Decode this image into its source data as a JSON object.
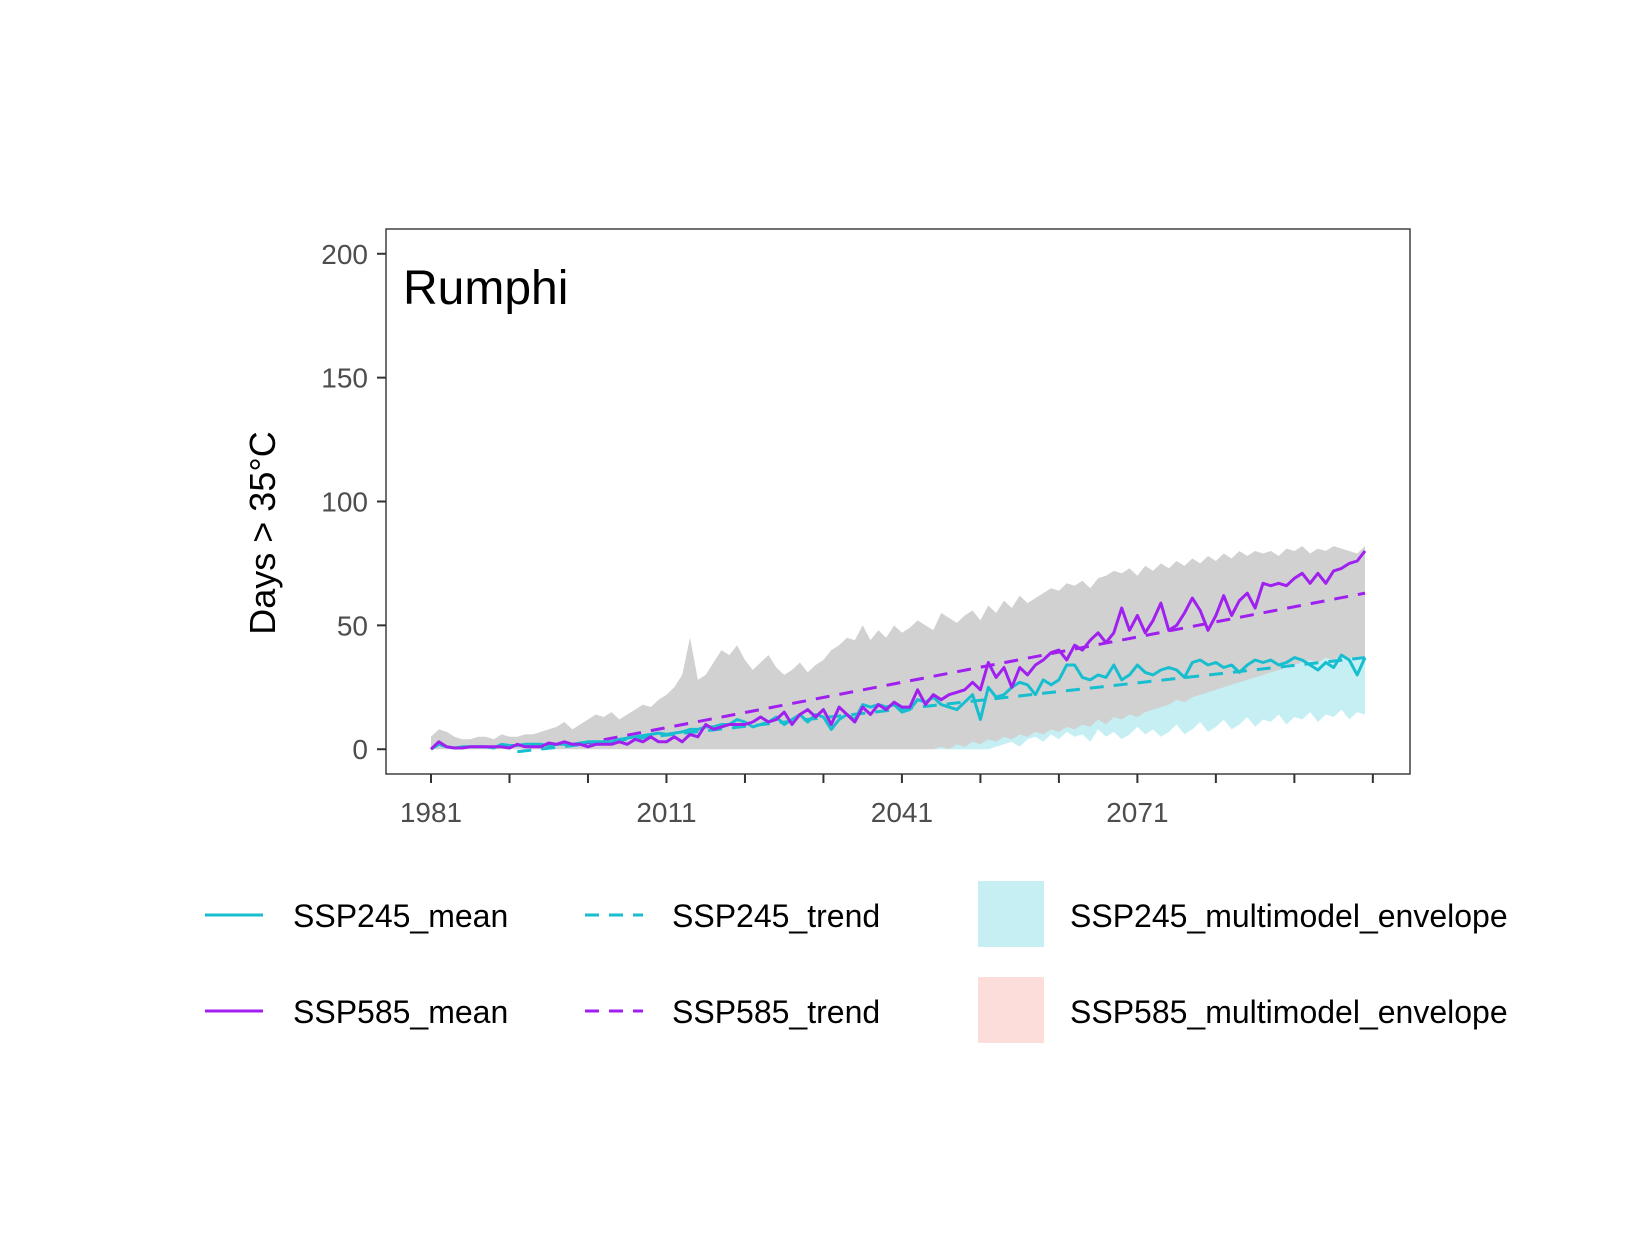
{
  "chart_data": {
    "type": "line",
    "title": "Rumphi",
    "xlabel": "",
    "ylabel": "Days > 35°C",
    "xlim": [
      1981,
      2100
    ],
    "ylim": [
      -10,
      210
    ],
    "xticks": [
      1981,
      2011,
      2041,
      2071
    ],
    "xticks_minor": [
      1991,
      2001,
      2021,
      2031,
      2051,
      2061,
      2081,
      2091,
      2101
    ],
    "yticks": [
      0,
      50,
      100,
      150,
      200
    ],
    "grid": false,
    "legend_position": "bottom",
    "x": [
      1981,
      1982,
      1983,
      1984,
      1985,
      1986,
      1987,
      1988,
      1989,
      1990,
      1991,
      1992,
      1993,
      1994,
      1995,
      1996,
      1997,
      1998,
      1999,
      2000,
      2001,
      2002,
      2003,
      2004,
      2005,
      2006,
      2007,
      2008,
      2009,
      2010,
      2011,
      2012,
      2013,
      2014,
      2015,
      2016,
      2017,
      2018,
      2019,
      2020,
      2021,
      2022,
      2023,
      2024,
      2025,
      2026,
      2027,
      2028,
      2029,
      2030,
      2031,
      2032,
      2033,
      2034,
      2035,
      2036,
      2037,
      2038,
      2039,
      2040,
      2041,
      2042,
      2043,
      2044,
      2045,
      2046,
      2047,
      2048,
      2049,
      2050,
      2051,
      2052,
      2053,
      2054,
      2055,
      2056,
      2057,
      2058,
      2059,
      2060,
      2061,
      2062,
      2063,
      2064,
      2065,
      2066,
      2067,
      2068,
      2069,
      2070,
      2071,
      2072,
      2073,
      2074,
      2075,
      2076,
      2077,
      2078,
      2079,
      2080,
      2081,
      2082,
      2083,
      2084,
      2085,
      2086,
      2087,
      2088,
      2089,
      2090,
      2091,
      2092,
      2093,
      2094,
      2095,
      2096,
      2097,
      2098,
      2099,
      2100
    ],
    "series": [
      {
        "name": "SSP245_mean",
        "kind": "line",
        "color": "#17BECF",
        "values": [
          0,
          2,
          1,
          0.5,
          1,
          1,
          1,
          1,
          0.5,
          2,
          1.5,
          1.5,
          2,
          2,
          2,
          1.5,
          2,
          2,
          2,
          2.5,
          3,
          3,
          3,
          3,
          4,
          4.5,
          5,
          5.5,
          6,
          6.5,
          6,
          6.5,
          7,
          8,
          8,
          9,
          9,
          10,
          10,
          12,
          11,
          9,
          10,
          11,
          13,
          10,
          12,
          14,
          11,
          14,
          13,
          8,
          12,
          14,
          12,
          18,
          17,
          18,
          17,
          18,
          15,
          16,
          20,
          19,
          21,
          18,
          17,
          16,
          19,
          22,
          12,
          25,
          21,
          22,
          25,
          27,
          26,
          22,
          28,
          26,
          28,
          34,
          34,
          29,
          28,
          30,
          29,
          34,
          28,
          30,
          34,
          31,
          30,
          32,
          33,
          32,
          29,
          35,
          36,
          34,
          35,
          33,
          34,
          31,
          34,
          36,
          35,
          36,
          34,
          35,
          37,
          36,
          34,
          32,
          35,
          33,
          38,
          36,
          30,
          37
        ]
      },
      {
        "name": "SSP585_mean",
        "kind": "line",
        "color": "#A020F0",
        "values": [
          0,
          3,
          1,
          0.5,
          0.5,
          1,
          1,
          1,
          1,
          1,
          0.5,
          2,
          1,
          1,
          1,
          2.5,
          2,
          3,
          2,
          2,
          1,
          2,
          2,
          2,
          3,
          2,
          4,
          3,
          5,
          3,
          3,
          5,
          3,
          6,
          5,
          10,
          8,
          9,
          10,
          10,
          10,
          11,
          13,
          11,
          12,
          15,
          10,
          14,
          16,
          13,
          16,
          10,
          17,
          14,
          11,
          17,
          14,
          18,
          16,
          19,
          17,
          17,
          24,
          18,
          22,
          20,
          22,
          23,
          24,
          27,
          24,
          35,
          29,
          33,
          25,
          33,
          30,
          34,
          36,
          39,
          40,
          36,
          42,
          40,
          44,
          47,
          43,
          47,
          57,
          48,
          54,
          47,
          52,
          59,
          48,
          50,
          55,
          61,
          56,
          48,
          54,
          62,
          54,
          60,
          63,
          57,
          67,
          66,
          67,
          66,
          69,
          71,
          67,
          71,
          67,
          72,
          73,
          75,
          76,
          80
        ]
      },
      {
        "name": "SSP245_trend",
        "kind": "trend",
        "color": "#17BECF",
        "x": [
          1992,
          2100
        ],
        "values": [
          -1,
          37
        ]
      },
      {
        "name": "SSP585_trend",
        "kind": "trend",
        "color": "#A020F0",
        "x": [
          2000,
          2100
        ],
        "values": [
          2,
          63
        ]
      },
      {
        "name": "SSP245_multimodel_envelope",
        "kind": "envelope",
        "color": "#17BECF",
        "lower": [
          0,
          0,
          0,
          0,
          0,
          0,
          0,
          0,
          0,
          0,
          0,
          0,
          0,
          0,
          0,
          0,
          0,
          0,
          0,
          0,
          0,
          0,
          0,
          0,
          0,
          0,
          0,
          0,
          0,
          0,
          0,
          0,
          0,
          0,
          0,
          0,
          0,
          0,
          0,
          0,
          0,
          0,
          0,
          0,
          0,
          0,
          0,
          0,
          0,
          0,
          0,
          0,
          0,
          0,
          0,
          0,
          0,
          0,
          0,
          0,
          0,
          0,
          0,
          0,
          0,
          0,
          0,
          0,
          0,
          0,
          0,
          0,
          1,
          2,
          3,
          1,
          4,
          5,
          3,
          6,
          4,
          7,
          5,
          6,
          3,
          8,
          5,
          7,
          4,
          6,
          9,
          6,
          8,
          5,
          7,
          10,
          6,
          8,
          11,
          7,
          9,
          12,
          8,
          10,
          13,
          9,
          12,
          11,
          14,
          10,
          13,
          12,
          15,
          11,
          14,
          13,
          16,
          12,
          15,
          14
        ],
        "upper": [
          5,
          8,
          7,
          5,
          4,
          4,
          5,
          5,
          4,
          6,
          5,
          5,
          6,
          6,
          7,
          8,
          9,
          11,
          8,
          10,
          12,
          14,
          13,
          15,
          12,
          14,
          16,
          18,
          17,
          20,
          22,
          25,
          30,
          45,
          28,
          30,
          35,
          40,
          38,
          42,
          36,
          32,
          35,
          38,
          33,
          30,
          32,
          35,
          31,
          34,
          36,
          40,
          42,
          45,
          44,
          50,
          44,
          48,
          45,
          50,
          47,
          49,
          52,
          50,
          48,
          55,
          53,
          51,
          54,
          56,
          52,
          58,
          55,
          60,
          57,
          62,
          59,
          61,
          63,
          65,
          64,
          67,
          66,
          68,
          65,
          69,
          70,
          72,
          71,
          73,
          70,
          74,
          72,
          75,
          73,
          76,
          74,
          77,
          75,
          78,
          76,
          79,
          77,
          80,
          78,
          80,
          79,
          80,
          78,
          81,
          80,
          82,
          79,
          81,
          80,
          82,
          81,
          80,
          79,
          82
        ]
      },
      {
        "name": "SSP585_multimodel_envelope",
        "kind": "envelope",
        "color": "#F8766D",
        "lower": [
          0,
          0,
          0,
          0,
          0,
          0,
          0,
          0,
          0,
          0,
          0,
          0,
          0,
          0,
          0,
          0,
          0,
          0,
          0,
          0,
          0,
          0,
          0,
          0,
          0,
          0,
          0,
          0,
          0,
          0,
          0,
          0,
          0,
          0,
          0,
          0,
          0,
          0,
          0,
          0,
          0,
          0,
          0,
          0,
          0,
          0,
          0,
          0,
          0,
          0,
          0,
          0,
          0,
          0,
          0,
          0,
          0,
          0,
          0,
          0,
          0,
          0,
          0,
          0,
          0,
          1,
          0,
          2,
          1,
          3,
          2,
          4,
          3,
          5,
          4,
          6,
          5,
          7,
          6,
          8,
          7,
          9,
          8,
          10,
          9,
          12,
          10,
          13,
          12,
          14,
          13,
          15,
          16,
          17,
          18,
          20,
          19,
          21,
          22,
          23,
          24,
          25,
          26,
          27,
          28,
          29,
          30,
          31,
          32,
          33,
          34,
          35,
          36,
          35,
          37,
          36,
          38,
          37,
          36,
          38
        ],
        "upper": [
          5,
          8,
          7,
          5,
          4,
          4,
          5,
          5,
          4,
          6,
          5,
          5,
          6,
          6,
          7,
          8,
          9,
          11,
          8,
          10,
          12,
          14,
          13,
          15,
          12,
          14,
          16,
          18,
          17,
          20,
          22,
          25,
          30,
          45,
          28,
          30,
          35,
          40,
          38,
          42,
          36,
          32,
          35,
          38,
          33,
          30,
          32,
          35,
          31,
          34,
          36,
          40,
          42,
          45,
          44,
          50,
          44,
          48,
          45,
          50,
          47,
          49,
          52,
          50,
          48,
          55,
          53,
          51,
          54,
          56,
          52,
          58,
          55,
          60,
          57,
          62,
          59,
          61,
          63,
          65,
          64,
          67,
          66,
          68,
          65,
          69,
          70,
          72,
          71,
          73,
          70,
          74,
          72,
          75,
          73,
          76,
          74,
          77,
          75,
          78,
          76,
          79,
          77,
          80,
          78,
          80,
          79,
          80,
          78,
          81,
          80,
          82,
          79,
          81,
          80,
          82,
          81,
          80,
          79,
          82
        ]
      }
    ]
  },
  "legend": {
    "items": [
      {
        "label": "SSP245_mean",
        "kind": "line",
        "color": "#17BECF"
      },
      {
        "label": "SSP245_trend",
        "kind": "dash",
        "color": "#17BECF"
      },
      {
        "label": "SSP245_multimodel_envelope",
        "kind": "fill",
        "color": "#17BECF"
      },
      {
        "label": "SSP585_mean",
        "kind": "line",
        "color": "#A020F0"
      },
      {
        "label": "SSP585_trend",
        "kind": "dash",
        "color": "#A020F0"
      },
      {
        "label": "SSP585_multimodel_envelope",
        "kind": "fill",
        "color": "#F8766D"
      }
    ]
  }
}
